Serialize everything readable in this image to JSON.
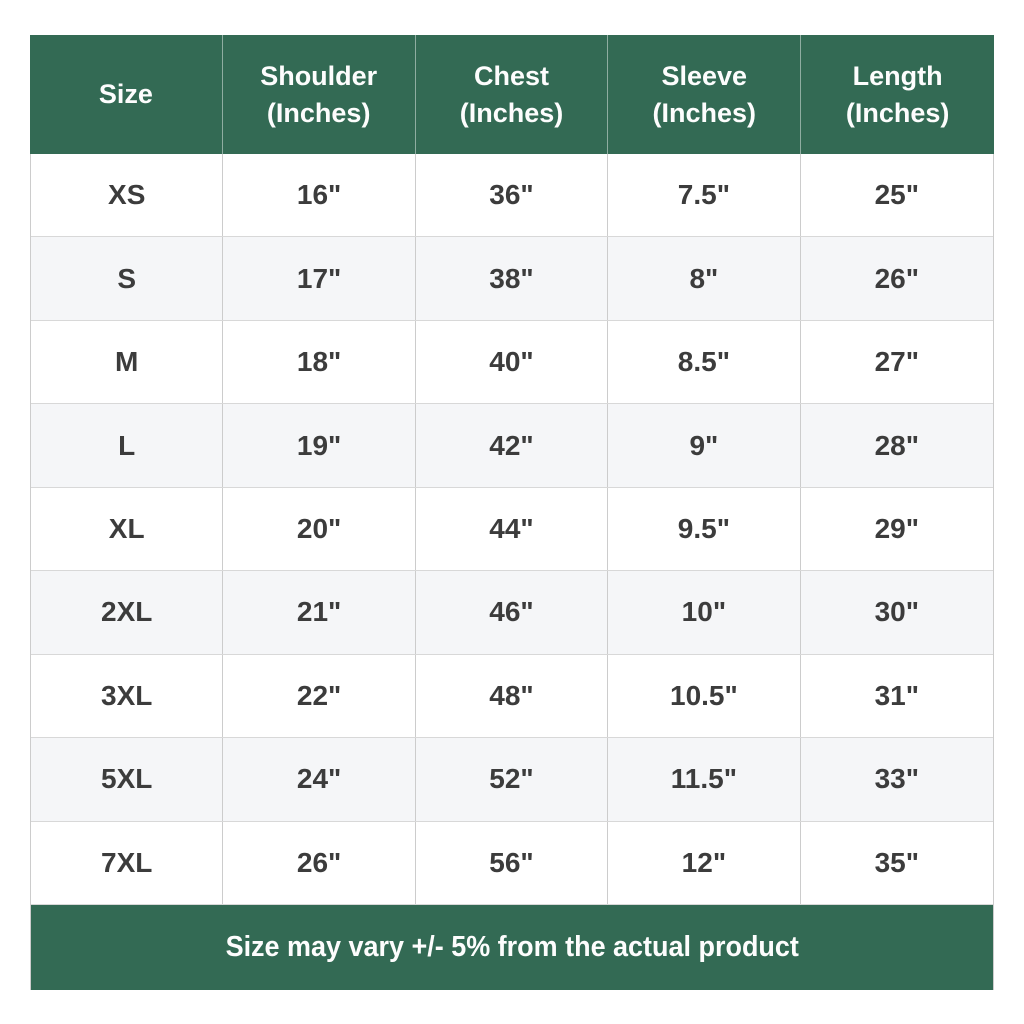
{
  "colors": {
    "accent_green": "#336a54",
    "alt_row": "#f5f6f8",
    "cell_text": "#3c3c3c",
    "header_text": "#fdfdfd",
    "border": "#cccccc",
    "page_background": "#ffffff"
  },
  "table": {
    "header": [
      {
        "label": "Size",
        "sub": ""
      },
      {
        "label": "Shoulder",
        "sub": "(Inches)"
      },
      {
        "label": "Chest",
        "sub": "(Inches)"
      },
      {
        "label": "Sleeve",
        "sub": "(Inches)"
      },
      {
        "label": "Length",
        "sub": "(Inches)"
      }
    ],
    "footer_note": "Size may vary +/- 5% from the actual product"
  },
  "chart_data": {
    "type": "table",
    "columns": [
      "Size",
      "Shoulder (Inches)",
      "Chest (Inches)",
      "Sleeve (Inches)",
      "Length (Inches)"
    ],
    "rows": [
      [
        "XS",
        "16\"",
        "36\"",
        "7.5\"",
        "25\""
      ],
      [
        "S",
        "17\"",
        "38\"",
        "8\"",
        "26\""
      ],
      [
        "M",
        "18\"",
        "40\"",
        "8.5\"",
        "27\""
      ],
      [
        "L",
        "19\"",
        "42\"",
        "9\"",
        "28\""
      ],
      [
        "XL",
        "20\"",
        "44\"",
        "9.5\"",
        "29\""
      ],
      [
        "2XL",
        "21\"",
        "46\"",
        "10\"",
        "30\""
      ],
      [
        "3XL",
        "22\"",
        "48\"",
        "10.5\"",
        "31\""
      ],
      [
        "5XL",
        "24\"",
        "52\"",
        "11.5\"",
        "33\""
      ],
      [
        "7XL",
        "26\"",
        "56\"",
        "12\"",
        "35\""
      ]
    ],
    "note": "Size may vary +/- 5% from the actual product",
    "layout": {
      "grid": "on",
      "header_position": "top",
      "footer_note_position": "bottom",
      "stripe": "even-rows"
    }
  }
}
